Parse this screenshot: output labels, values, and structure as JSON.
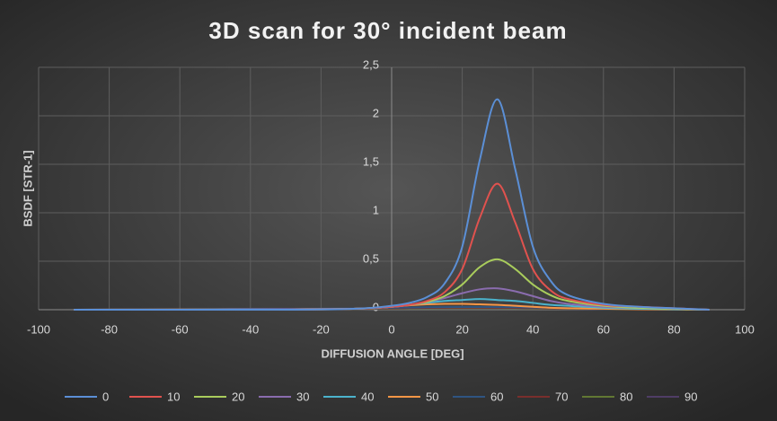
{
  "chart_data": {
    "type": "line",
    "title": "3D scan for 30° incident beam",
    "x_label": "DIFFUSION ANGLE [DEG]",
    "y_label": "BSDF [STR-1]",
    "x": [
      -90,
      -60,
      -30,
      -10,
      0,
      5,
      10,
      15,
      20,
      25,
      30,
      35,
      40,
      45,
      50,
      60,
      70,
      80,
      90
    ],
    "series": [
      {
        "name": "0",
        "color": "#5b8fd6",
        "values": [
          0,
          0,
          0,
          0.01,
          0.04,
          0.07,
          0.13,
          0.27,
          0.65,
          1.55,
          2.17,
          1.45,
          0.65,
          0.3,
          0.15,
          0.06,
          0.03,
          0.015,
          0
        ]
      },
      {
        "name": "10",
        "color": "#e0524e",
        "values": [
          0,
          0,
          0,
          0.01,
          0.03,
          0.05,
          0.09,
          0.18,
          0.42,
          0.95,
          1.3,
          0.9,
          0.42,
          0.2,
          0.11,
          0.05,
          0.03,
          0.015,
          0
        ]
      },
      {
        "name": "20",
        "color": "#a9cc5c",
        "values": [
          0,
          0,
          0,
          0.01,
          0.03,
          0.05,
          0.08,
          0.14,
          0.26,
          0.44,
          0.52,
          0.42,
          0.26,
          0.15,
          0.09,
          0.04,
          0.02,
          0.01,
          0
        ]
      },
      {
        "name": "30",
        "color": "#8a6cae",
        "values": [
          0,
          0,
          0.005,
          0.01,
          0.03,
          0.05,
          0.08,
          0.12,
          0.17,
          0.21,
          0.22,
          0.19,
          0.14,
          0.09,
          0.06,
          0.03,
          0.02,
          0.01,
          0
        ]
      },
      {
        "name": "40",
        "color": "#4bb3cc",
        "values": [
          0,
          0,
          0.005,
          0.01,
          0.03,
          0.05,
          0.07,
          0.09,
          0.1,
          0.11,
          0.1,
          0.09,
          0.07,
          0.05,
          0.04,
          0.02,
          0.01,
          0.005,
          0
        ]
      },
      {
        "name": "50",
        "color": "#f79646",
        "values": [
          0,
          0.002,
          0.005,
          0.01,
          0.03,
          0.045,
          0.055,
          0.06,
          0.06,
          0.055,
          0.05,
          0.04,
          0.03,
          0.02,
          0.015,
          0.01,
          0.005,
          0.002,
          0
        ]
      },
      {
        "name": "60",
        "color": "#2f5582",
        "values": [
          0,
          0.005,
          0.008,
          0.012,
          0.02,
          0.022,
          0.025,
          0.027,
          0.028,
          0.028,
          0.027,
          0.025,
          0.022,
          0.02,
          0.017,
          0.012,
          0.008,
          0.004,
          0
        ]
      },
      {
        "name": "70",
        "color": "#7a2e2c",
        "values": [
          0,
          0.004,
          0.007,
          0.01,
          0.015,
          0.017,
          0.019,
          0.02,
          0.021,
          0.021,
          0.02,
          0.019,
          0.017,
          0.015,
          0.013,
          0.01,
          0.007,
          0.003,
          0
        ]
      },
      {
        "name": "80",
        "color": "#617833",
        "values": [
          0,
          0.003,
          0.006,
          0.008,
          0.012,
          0.013,
          0.014,
          0.015,
          0.015,
          0.015,
          0.015,
          0.014,
          0.013,
          0.012,
          0.01,
          0.008,
          0.005,
          0.002,
          0
        ]
      },
      {
        "name": "90",
        "color": "#4f3d66",
        "values": [
          0,
          0.003,
          0.005,
          0.007,
          0.01,
          0.011,
          0.012,
          0.012,
          0.012,
          0.012,
          0.012,
          0.011,
          0.01,
          0.009,
          0.008,
          0.006,
          0.004,
          0.002,
          0
        ]
      }
    ],
    "xlim": [
      -100,
      100
    ],
    "xticks": [
      -100,
      -80,
      -60,
      -40,
      -20,
      0,
      20,
      40,
      60,
      80,
      100
    ],
    "ylim": [
      0,
      2.5
    ],
    "yticks": [
      0,
      {
        "value": 0.5,
        "label": "0,5"
      },
      1,
      {
        "value": 1.5,
        "label": "1,5"
      },
      2,
      {
        "value": 2.5,
        "label": "2,5"
      }
    ],
    "grid": true,
    "legend": "bottom"
  }
}
